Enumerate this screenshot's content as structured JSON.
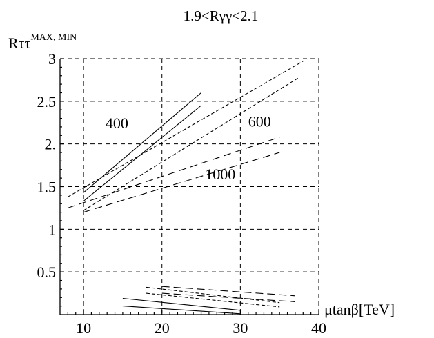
{
  "chart_data": {
    "type": "line",
    "title": "1.9<Rγγ<2.1",
    "ylabel": "Rττ",
    "ylabel_sup": "MAX, MIN",
    "xlabel": "μtanβ[TeV]",
    "xlim": [
      7,
      40
    ],
    "ylim": [
      0,
      3
    ],
    "xticks": [
      10,
      20,
      30,
      40
    ],
    "xtick_labels": [
      "10",
      "20",
      "30",
      "40"
    ],
    "yticks": [
      0.5,
      1,
      1.5,
      2,
      2.5,
      3
    ],
    "ytick_labels": [
      "0.5",
      "1",
      "1.5",
      "2.",
      "2.5",
      "3"
    ],
    "grid": true,
    "series": [
      {
        "style": "solid",
        "x": [
          10,
          25
        ],
        "y": [
          1.43,
          2.6
        ]
      },
      {
        "style": "solid",
        "x": [
          10,
          25
        ],
        "y": [
          1.33,
          2.45
        ]
      },
      {
        "style": "dotted",
        "x": [
          8,
          38
        ],
        "y": [
          1.38,
          2.97
        ]
      },
      {
        "style": "dotted",
        "x": [
          10,
          37.5
        ],
        "y": [
          1.22,
          2.78
        ]
      },
      {
        "style": "dashed",
        "x": [
          8,
          35
        ],
        "y": [
          1.25,
          2.08
        ]
      },
      {
        "style": "dashed",
        "x": [
          10,
          35
        ],
        "y": [
          1.2,
          1.9
        ]
      },
      {
        "style": "solid",
        "x": [
          15,
          30
        ],
        "y": [
          0.19,
          0.05
        ]
      },
      {
        "style": "solid",
        "x": [
          15,
          30
        ],
        "y": [
          0.1,
          0.01
        ]
      },
      {
        "style": "dotted",
        "x": [
          18,
          35
        ],
        "y": [
          0.32,
          0.14
        ]
      },
      {
        "style": "dotted",
        "x": [
          18,
          35
        ],
        "y": [
          0.25,
          0.09
        ]
      },
      {
        "style": "dashed",
        "x": [
          20,
          37
        ],
        "y": [
          0.33,
          0.22
        ]
      },
      {
        "style": "dashed",
        "x": [
          20,
          37
        ],
        "y": [
          0.25,
          0.15
        ]
      }
    ],
    "annotations": [
      {
        "text": "400",
        "x": 12.8,
        "y": 2.25
      },
      {
        "text": "600",
        "x": 31.0,
        "y": 2.27
      },
      {
        "text": "1000",
        "x": 25.5,
        "y": 1.65
      }
    ]
  }
}
